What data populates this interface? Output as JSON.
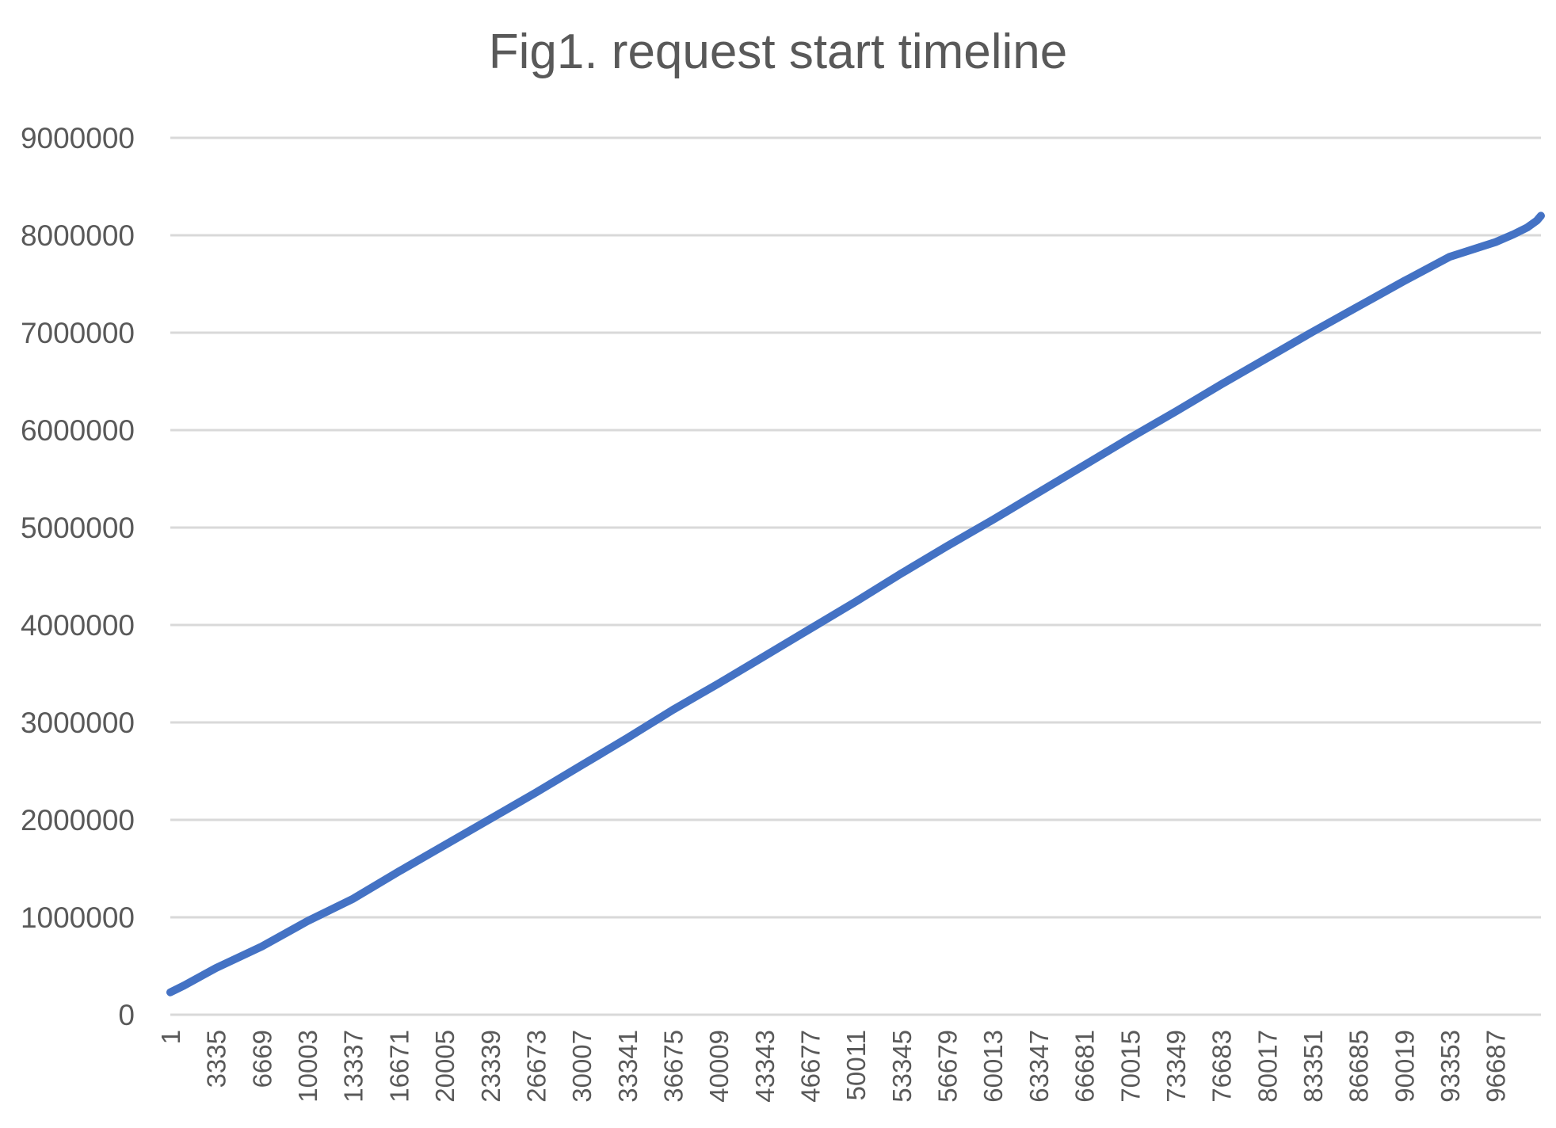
{
  "chart_data": {
    "type": "line",
    "title": "Fig1. request start timeline",
    "xlabel": "",
    "ylabel": "",
    "ylim": [
      0,
      9000000
    ],
    "yticks": [
      0,
      1000000,
      2000000,
      3000000,
      4000000,
      5000000,
      6000000,
      7000000,
      8000000,
      9000000
    ],
    "x_categories": [
      "1",
      "3335",
      "6669",
      "10003",
      "13337",
      "16671",
      "20005",
      "23339",
      "26673",
      "30007",
      "33341",
      "36675",
      "40009",
      "43343",
      "46677",
      "50011",
      "53345",
      "56679",
      "60013",
      "63347",
      "66681",
      "70015",
      "73349",
      "76683",
      "80017",
      "83351",
      "86685",
      "90019",
      "93353",
      "96687"
    ],
    "x_range": [
      1,
      100000
    ],
    "grid": true,
    "legend": "none",
    "series": [
      {
        "color": "#4472C4",
        "points": [
          [
            1,
            230000
          ],
          [
            1000,
            300000
          ],
          [
            3335,
            480000
          ],
          [
            6669,
            700000
          ],
          [
            10003,
            960000
          ],
          [
            13337,
            1190000
          ],
          [
            16671,
            1470000
          ],
          [
            20005,
            1740000
          ],
          [
            23339,
            2010000
          ],
          [
            26673,
            2280000
          ],
          [
            30007,
            2560000
          ],
          [
            33341,
            2840000
          ],
          [
            36675,
            3130000
          ],
          [
            40009,
            3400000
          ],
          [
            43343,
            3680000
          ],
          [
            46677,
            3960000
          ],
          [
            50011,
            4240000
          ],
          [
            53345,
            4530000
          ],
          [
            56679,
            4810000
          ],
          [
            60013,
            5080000
          ],
          [
            63347,
            5360000
          ],
          [
            66681,
            5640000
          ],
          [
            70015,
            5920000
          ],
          [
            73349,
            6190000
          ],
          [
            76683,
            6470000
          ],
          [
            80017,
            6740000
          ],
          [
            83351,
            7010000
          ],
          [
            86685,
            7270000
          ],
          [
            90019,
            7530000
          ],
          [
            93353,
            7780000
          ],
          [
            96687,
            7930000
          ],
          [
            98000,
            8010000
          ],
          [
            99000,
            8080000
          ],
          [
            99700,
            8150000
          ],
          [
            100000,
            8200000
          ]
        ]
      }
    ]
  }
}
